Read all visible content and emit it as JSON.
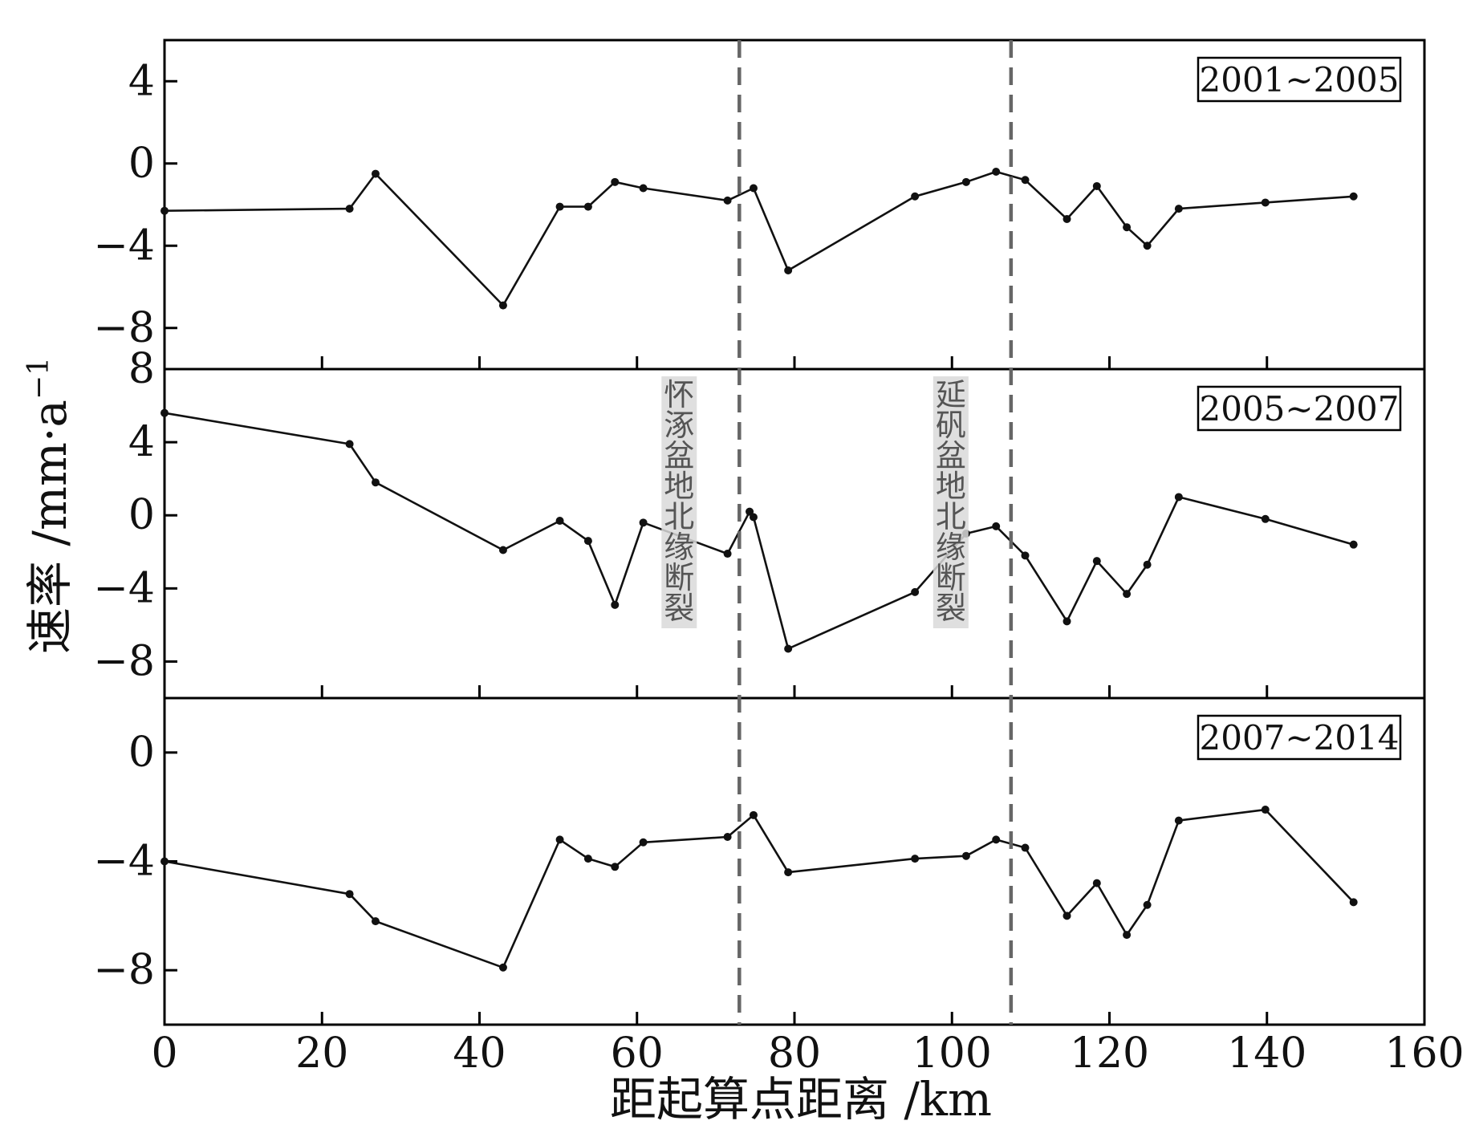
{
  "chart_data": {
    "type": "line",
    "xlabel": "距起算点距离 /km",
    "ylabel": "速率 /mm·a",
    "ylabel_sup": "−1",
    "xlim": [
      0,
      160
    ],
    "xticks": [
      0,
      20,
      40,
      60,
      80,
      100,
      120,
      140,
      160
    ],
    "grid": false,
    "faults": [
      {
        "name": "怀涿盆地北缘断裂",
        "x": 73
      },
      {
        "name": "延矾盆地北缘断裂",
        "x": 107.5
      }
    ],
    "panels": [
      {
        "period": "2001~2005",
        "ylim": [
          -10,
          6
        ],
        "yticks": [
          4,
          0,
          -4,
          -8
        ],
        "ytick_labels": [
          "4",
          "0",
          "−4",
          "−8"
        ],
        "points": [
          [
            0,
            -2.3
          ],
          [
            23.5,
            -2.2
          ],
          [
            26.8,
            -0.5
          ],
          [
            43,
            -6.9
          ],
          [
            50.2,
            -2.1
          ],
          [
            53.8,
            -2.1
          ],
          [
            57.2,
            -0.9
          ],
          [
            60.8,
            -1.2
          ],
          [
            71.5,
            -1.8
          ],
          [
            74.8,
            -1.2
          ],
          [
            79.2,
            -5.2
          ],
          [
            95.3,
            -1.6
          ],
          [
            101.8,
            -0.9
          ],
          [
            105.6,
            -0.4
          ],
          [
            109.3,
            -0.8
          ],
          [
            114.6,
            -2.7
          ],
          [
            118.4,
            -1.1
          ],
          [
            122.2,
            -3.1
          ],
          [
            124.8,
            -4.0
          ],
          [
            128.8,
            -2.2
          ],
          [
            139.8,
            -1.9
          ],
          [
            151,
            -1.6
          ]
        ]
      },
      {
        "period": "2005~2007",
        "ylim": [
          -10,
          8
        ],
        "yticks": [
          8,
          4,
          0,
          -4,
          -8
        ],
        "ytick_labels": [
          "8",
          "4",
          "0",
          "−4",
          "−8"
        ],
        "points": [
          [
            0,
            5.6
          ],
          [
            23.5,
            3.9
          ],
          [
            26.8,
            1.8
          ],
          [
            43,
            -1.9
          ],
          [
            50.2,
            -0.3
          ],
          [
            53.8,
            -1.4
          ],
          [
            57.2,
            -4.9
          ],
          [
            60.8,
            -0.4
          ],
          [
            71.5,
            -2.1
          ],
          [
            74.3,
            0.2
          ],
          [
            74.8,
            -0.1
          ],
          [
            79.2,
            -7.3
          ],
          [
            95.3,
            -4.2
          ],
          [
            101.8,
            -1.0
          ],
          [
            105.6,
            -0.6
          ],
          [
            109.3,
            -2.2
          ],
          [
            114.6,
            -5.8
          ],
          [
            118.4,
            -2.5
          ],
          [
            122.2,
            -4.3
          ],
          [
            124.8,
            -2.7
          ],
          [
            128.8,
            1.0
          ],
          [
            139.8,
            -0.2
          ],
          [
            151,
            -1.6
          ]
        ]
      },
      {
        "period": "2007~2014",
        "ylim": [
          -10,
          2
        ],
        "yticks": [
          0,
          -4,
          -8
        ],
        "ytick_labels": [
          "0",
          "−4",
          "−8"
        ],
        "points": [
          [
            0,
            -4.0
          ],
          [
            23.5,
            -5.2
          ],
          [
            26.8,
            -6.2
          ],
          [
            43,
            -7.9
          ],
          [
            50.2,
            -3.2
          ],
          [
            53.8,
            -3.9
          ],
          [
            57.2,
            -4.2
          ],
          [
            60.8,
            -3.3
          ],
          [
            71.5,
            -3.1
          ],
          [
            74.8,
            -2.3
          ],
          [
            79.2,
            -4.4
          ],
          [
            95.3,
            -3.9
          ],
          [
            101.8,
            -3.8
          ],
          [
            105.6,
            -3.2
          ],
          [
            109.3,
            -3.5
          ],
          [
            114.6,
            -6.0
          ],
          [
            118.4,
            -4.8
          ],
          [
            122.2,
            -6.7
          ],
          [
            124.8,
            -5.6
          ],
          [
            128.8,
            -2.5
          ],
          [
            139.8,
            -2.1
          ],
          [
            151,
            -5.5
          ]
        ]
      }
    ]
  }
}
